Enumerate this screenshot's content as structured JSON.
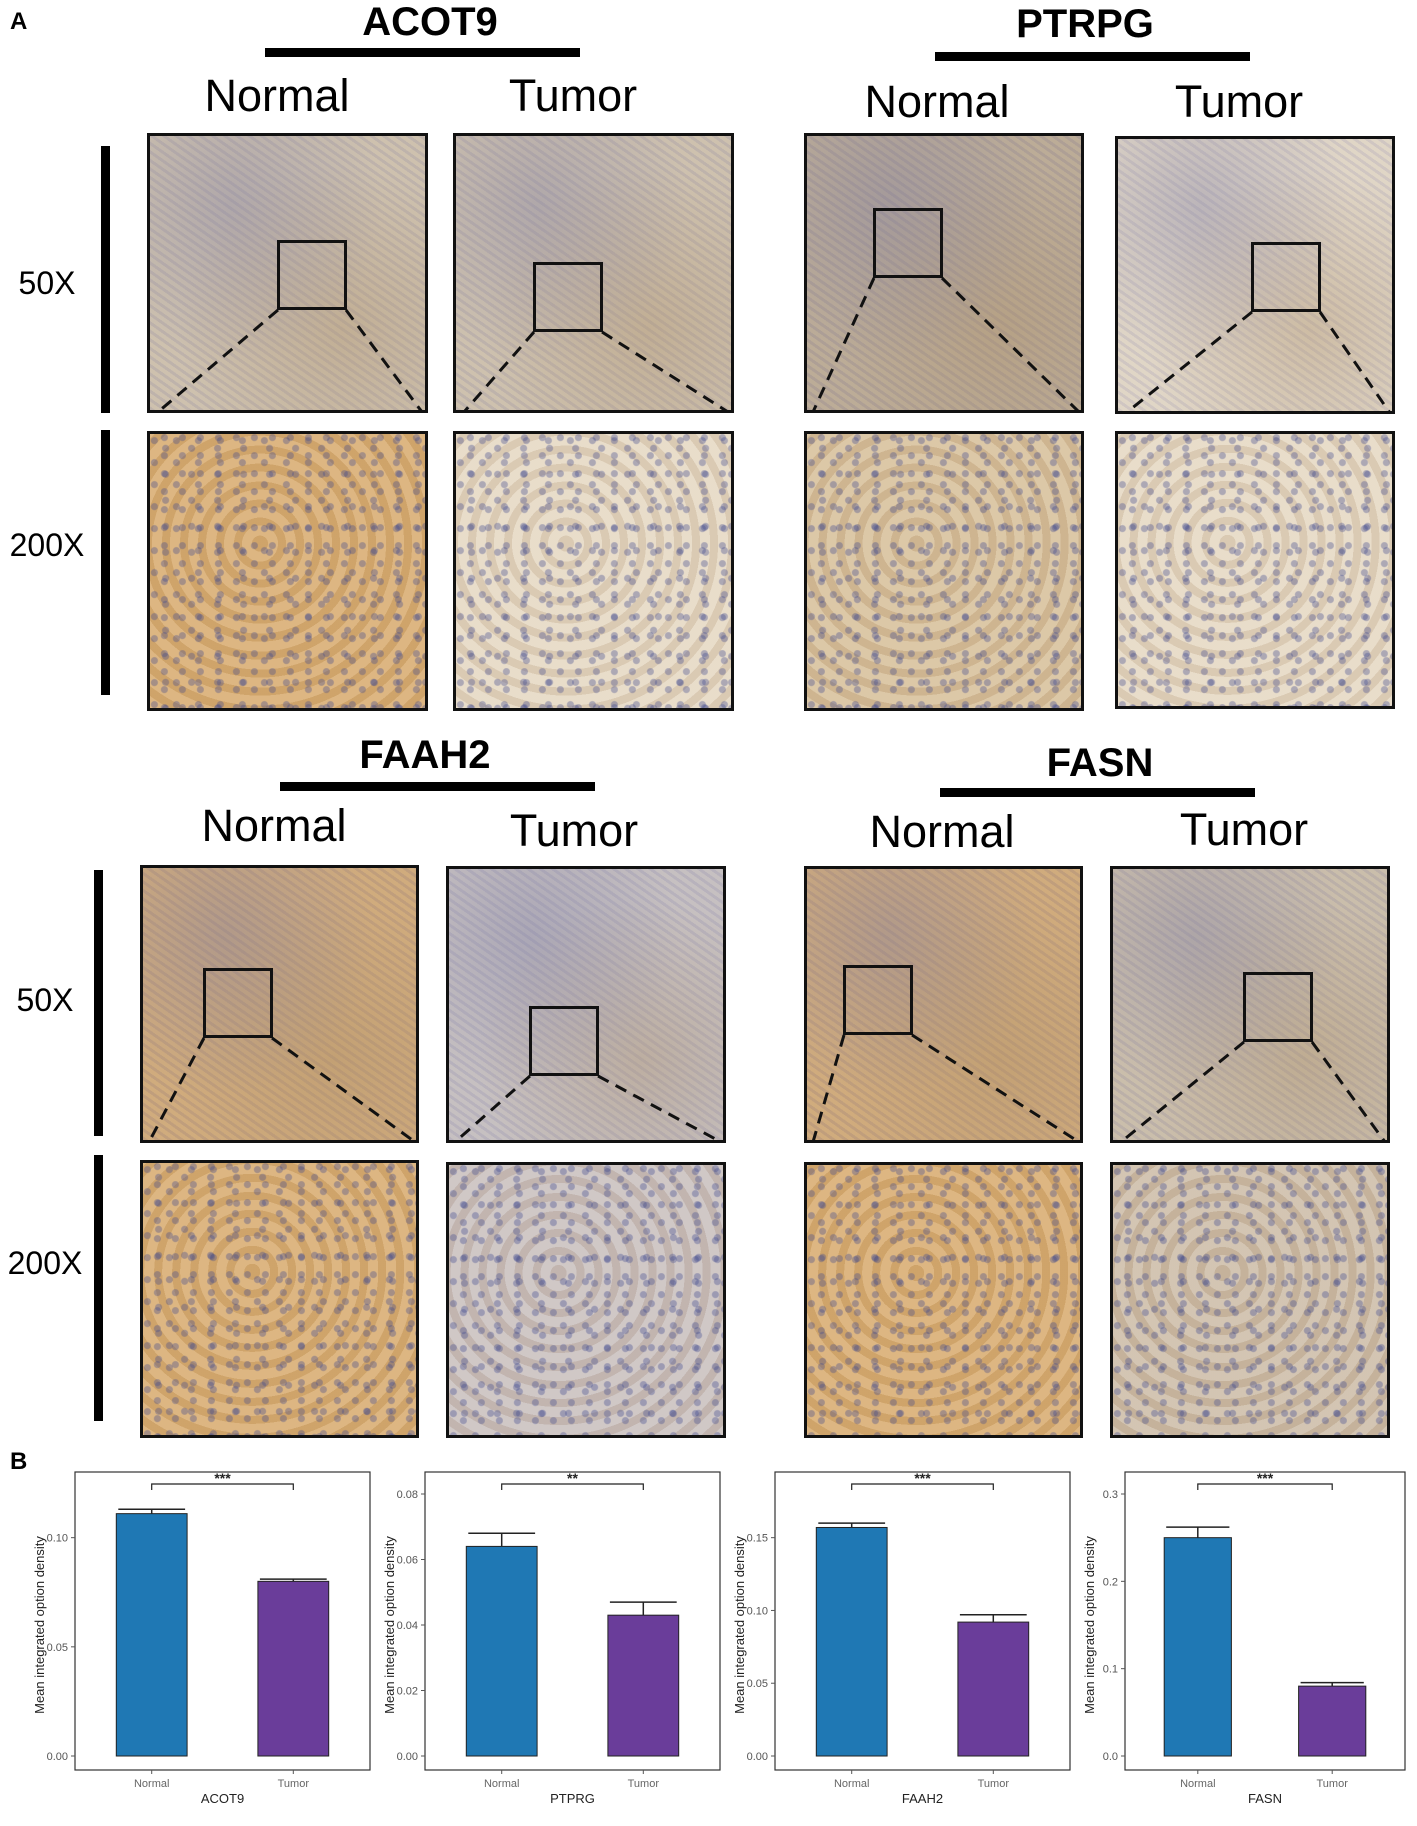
{
  "panels": {
    "a": "A",
    "b": "B"
  },
  "ihc_blocks": [
    {
      "gene": "ACOT9",
      "col_normal": "Normal",
      "col_tumor": "Tumor",
      "row_top": "50X",
      "row_bottom": "200X"
    },
    {
      "gene": "PTRPG",
      "col_normal": "Normal",
      "col_tumor": "Tumor"
    },
    {
      "gene": "FAAH2",
      "col_normal": "Normal",
      "col_tumor": "Tumor",
      "row_top": "50X",
      "row_bottom": "200X"
    },
    {
      "gene": "FASN",
      "col_normal": "Normal",
      "col_tumor": "Tumor"
    }
  ],
  "colors": {
    "normal": "#1f78b4",
    "tumor": "#6a3d9a",
    "frame": "#333333"
  },
  "chart_data": [
    {
      "type": "bar",
      "categories": [
        "Normal",
        "Tumor"
      ],
      "values": [
        0.111,
        0.08
      ],
      "errors": [
        0.002,
        0.001
      ],
      "xlabel": "ACOT9",
      "ylabel": "Mean integrated option density",
      "ylim": [
        0,
        0.12
      ],
      "yticks": [
        "0.00",
        "0.05",
        "0.10"
      ],
      "significance": "***"
    },
    {
      "type": "bar",
      "categories": [
        "Normal",
        "Tumor"
      ],
      "values": [
        0.064,
        0.043
      ],
      "errors": [
        0.004,
        0.004
      ],
      "xlabel": "PTPRG",
      "ylabel": "Mean integrated option density",
      "ylim": [
        0,
        0.08
      ],
      "yticks": [
        "0.00",
        "0.02",
        "0.04",
        "0.06",
        "0.08"
      ],
      "significance": "**"
    },
    {
      "type": "bar",
      "categories": [
        "Normal",
        "Tumor"
      ],
      "values": [
        0.157,
        0.092
      ],
      "errors": [
        0.003,
        0.005
      ],
      "xlabel": "FAAH2",
      "ylabel": "Mean integrated option density",
      "ylim": [
        0,
        0.18
      ],
      "yticks": [
        "0.00",
        "0.05",
        "0.10",
        "0.15"
      ],
      "significance": "***"
    },
    {
      "type": "bar",
      "categories": [
        "Normal",
        "Tumor"
      ],
      "values": [
        0.25,
        0.08
      ],
      "errors": [
        0.012,
        0.004
      ],
      "xlabel": "FASN",
      "ylabel": "Mean integrated option density",
      "ylim": [
        0,
        0.3
      ],
      "yticks": [
        "0.0",
        "0.1",
        "0.2",
        "0.3"
      ],
      "significance": "***"
    }
  ]
}
